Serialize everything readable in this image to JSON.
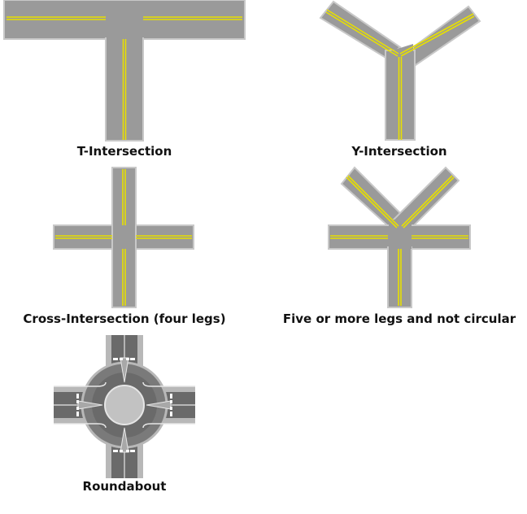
{
  "diagrams": [
    {
      "id": "t",
      "caption": "T-Intersection"
    },
    {
      "id": "y",
      "caption": "Y-Intersection"
    },
    {
      "id": "cross",
      "caption": "Cross-Intersection (four legs)"
    },
    {
      "id": "five",
      "caption": "Five or more legs and not circular"
    },
    {
      "id": "round",
      "caption": "Roundabout"
    }
  ],
  "colors": {
    "road": "#9a9a9a",
    "road_edge": "#c8c8c8",
    "center_line": "#e8e000",
    "island": "#a8a8a8",
    "island_edge": "#e6e6e6",
    "dark_asphalt": "#6a6a6a",
    "crosswalk": "#ffffff"
  }
}
